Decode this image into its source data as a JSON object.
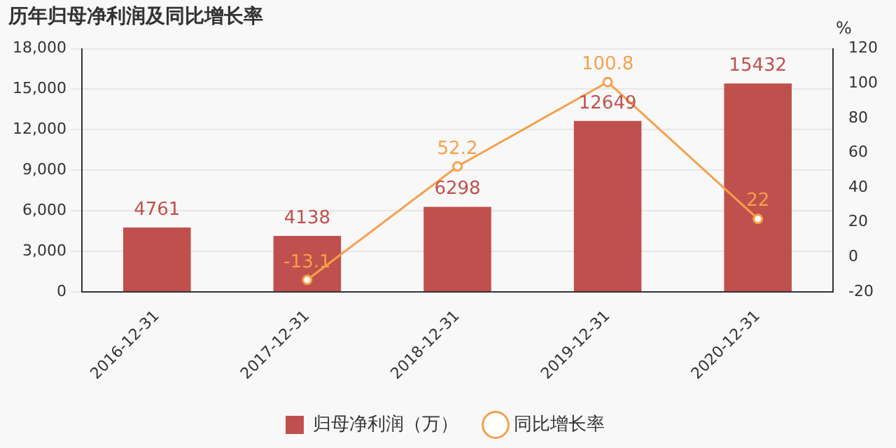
{
  "chart_data": {
    "type": "bar",
    "title": "历年归母净利润及同比增长率",
    "categories": [
      "2016-12-31",
      "2017-12-31",
      "2018-12-31",
      "2019-12-31",
      "2020-12-31"
    ],
    "series": [
      {
        "name": "归母净利润（万）",
        "color": "#c0504d",
        "values": [
          4761,
          4138,
          6298,
          12649,
          15432
        ]
      },
      {
        "name": "同比增长率",
        "type": "line",
        "axis": "y2",
        "color": "#f5a04a",
        "values": [
          null,
          -13.1,
          52.2,
          100.8,
          22
        ]
      }
    ],
    "ylim": [
      0,
      18000
    ],
    "yticks": [
      0,
      {
        "value": 3000,
        "label": "3,000"
      },
      {
        "value": 6000,
        "label": "6,000"
      },
      {
        "value": 9000,
        "label": "9,000"
      },
      {
        "value": 12000,
        "label": "12,000"
      },
      {
        "value": 15000,
        "label": "15,000"
      },
      {
        "value": 18000,
        "label": "18,000"
      }
    ],
    "y2label": "%",
    "y2lim": [
      -20,
      120
    ],
    "y2ticks": [
      -20,
      0,
      20,
      40,
      60,
      80,
      100,
      120
    ],
    "grid": "y",
    "legend": "bottom",
    "marker": "circle",
    "line_style": "solid",
    "data_labels": true
  }
}
